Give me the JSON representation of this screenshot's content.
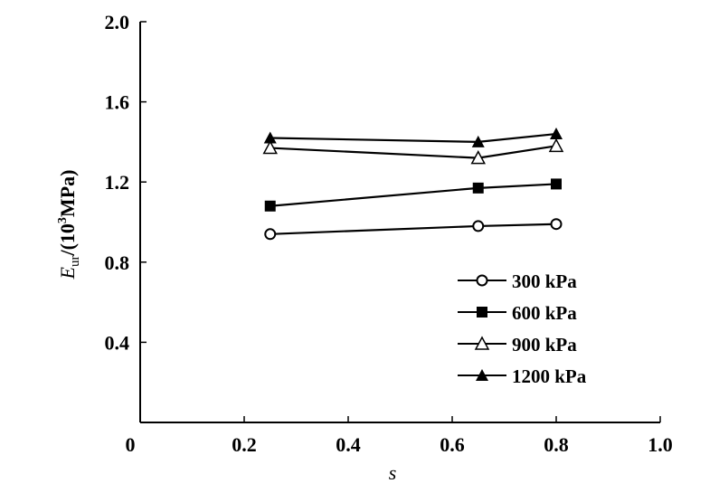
{
  "chart_data": {
    "type": "line",
    "title": "",
    "xlabel": "s",
    "ylabel": {
      "main": "E",
      "sub": "ur",
      "rest1": "/(10",
      "sup": "3",
      "rest2": "MPa)"
    },
    "xlim": [
      0,
      1.0
    ],
    "ylim": [
      0,
      2.0
    ],
    "xticks": [
      "0",
      "0.2",
      "0.4",
      "0.6",
      "0.8",
      "1.0"
    ],
    "xtick_values": [
      0,
      0.2,
      0.4,
      0.6,
      0.8,
      1.0
    ],
    "yticks": [
      "0.4",
      "0.8",
      "1.2",
      "1.6",
      "2.0"
    ],
    "ytick_values": [
      0.4,
      0.8,
      1.2,
      1.6,
      2.0
    ],
    "grid": false,
    "legend_position": "bottom-right",
    "x": [
      0.25,
      0.65,
      0.8
    ],
    "series": [
      {
        "name": "300 kPa",
        "marker": "open-circle",
        "values": [
          0.94,
          0.98,
          0.99
        ]
      },
      {
        "name": "600 kPa",
        "marker": "filled-square",
        "values": [
          1.08,
          1.17,
          1.19
        ]
      },
      {
        "name": "900 kPa",
        "marker": "open-triangle",
        "values": [
          1.37,
          1.32,
          1.38
        ]
      },
      {
        "name": "1200 kPa",
        "marker": "filled-triangle",
        "values": [
          1.42,
          1.4,
          1.44
        ]
      }
    ]
  }
}
